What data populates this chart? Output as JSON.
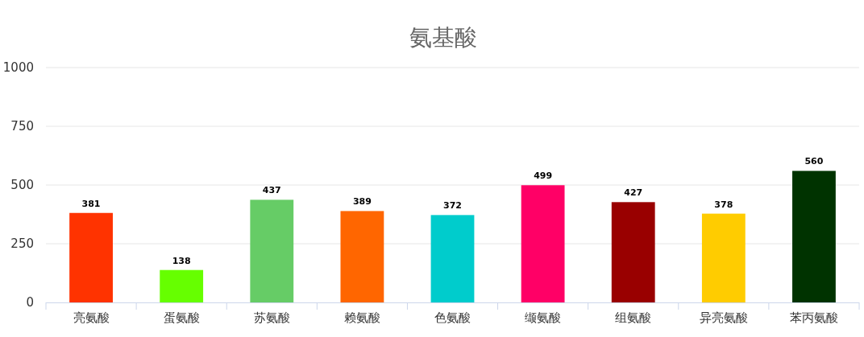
{
  "chart_data": {
    "type": "bar",
    "title": "氨基酸",
    "categories": [
      "亮氨酸",
      "蛋氨酸",
      "苏氨酸",
      "赖氨酸",
      "色氨酸",
      "缬氨酸",
      "组氨酸",
      "异亮氨酸",
      "苯丙氨酸"
    ],
    "values": [
      381,
      138,
      437,
      389,
      372,
      499,
      427,
      378,
      560
    ],
    "colors": [
      "#ff3300",
      "#66ff00",
      "#66cc66",
      "#ff6600",
      "#00cccc",
      "#ff0066",
      "#990000",
      "#ffcc00",
      "#003300"
    ],
    "ylim": [
      0,
      1000
    ],
    "yticks": [
      0,
      250,
      500,
      750,
      1000
    ],
    "grid": "y",
    "data_labels": true
  }
}
